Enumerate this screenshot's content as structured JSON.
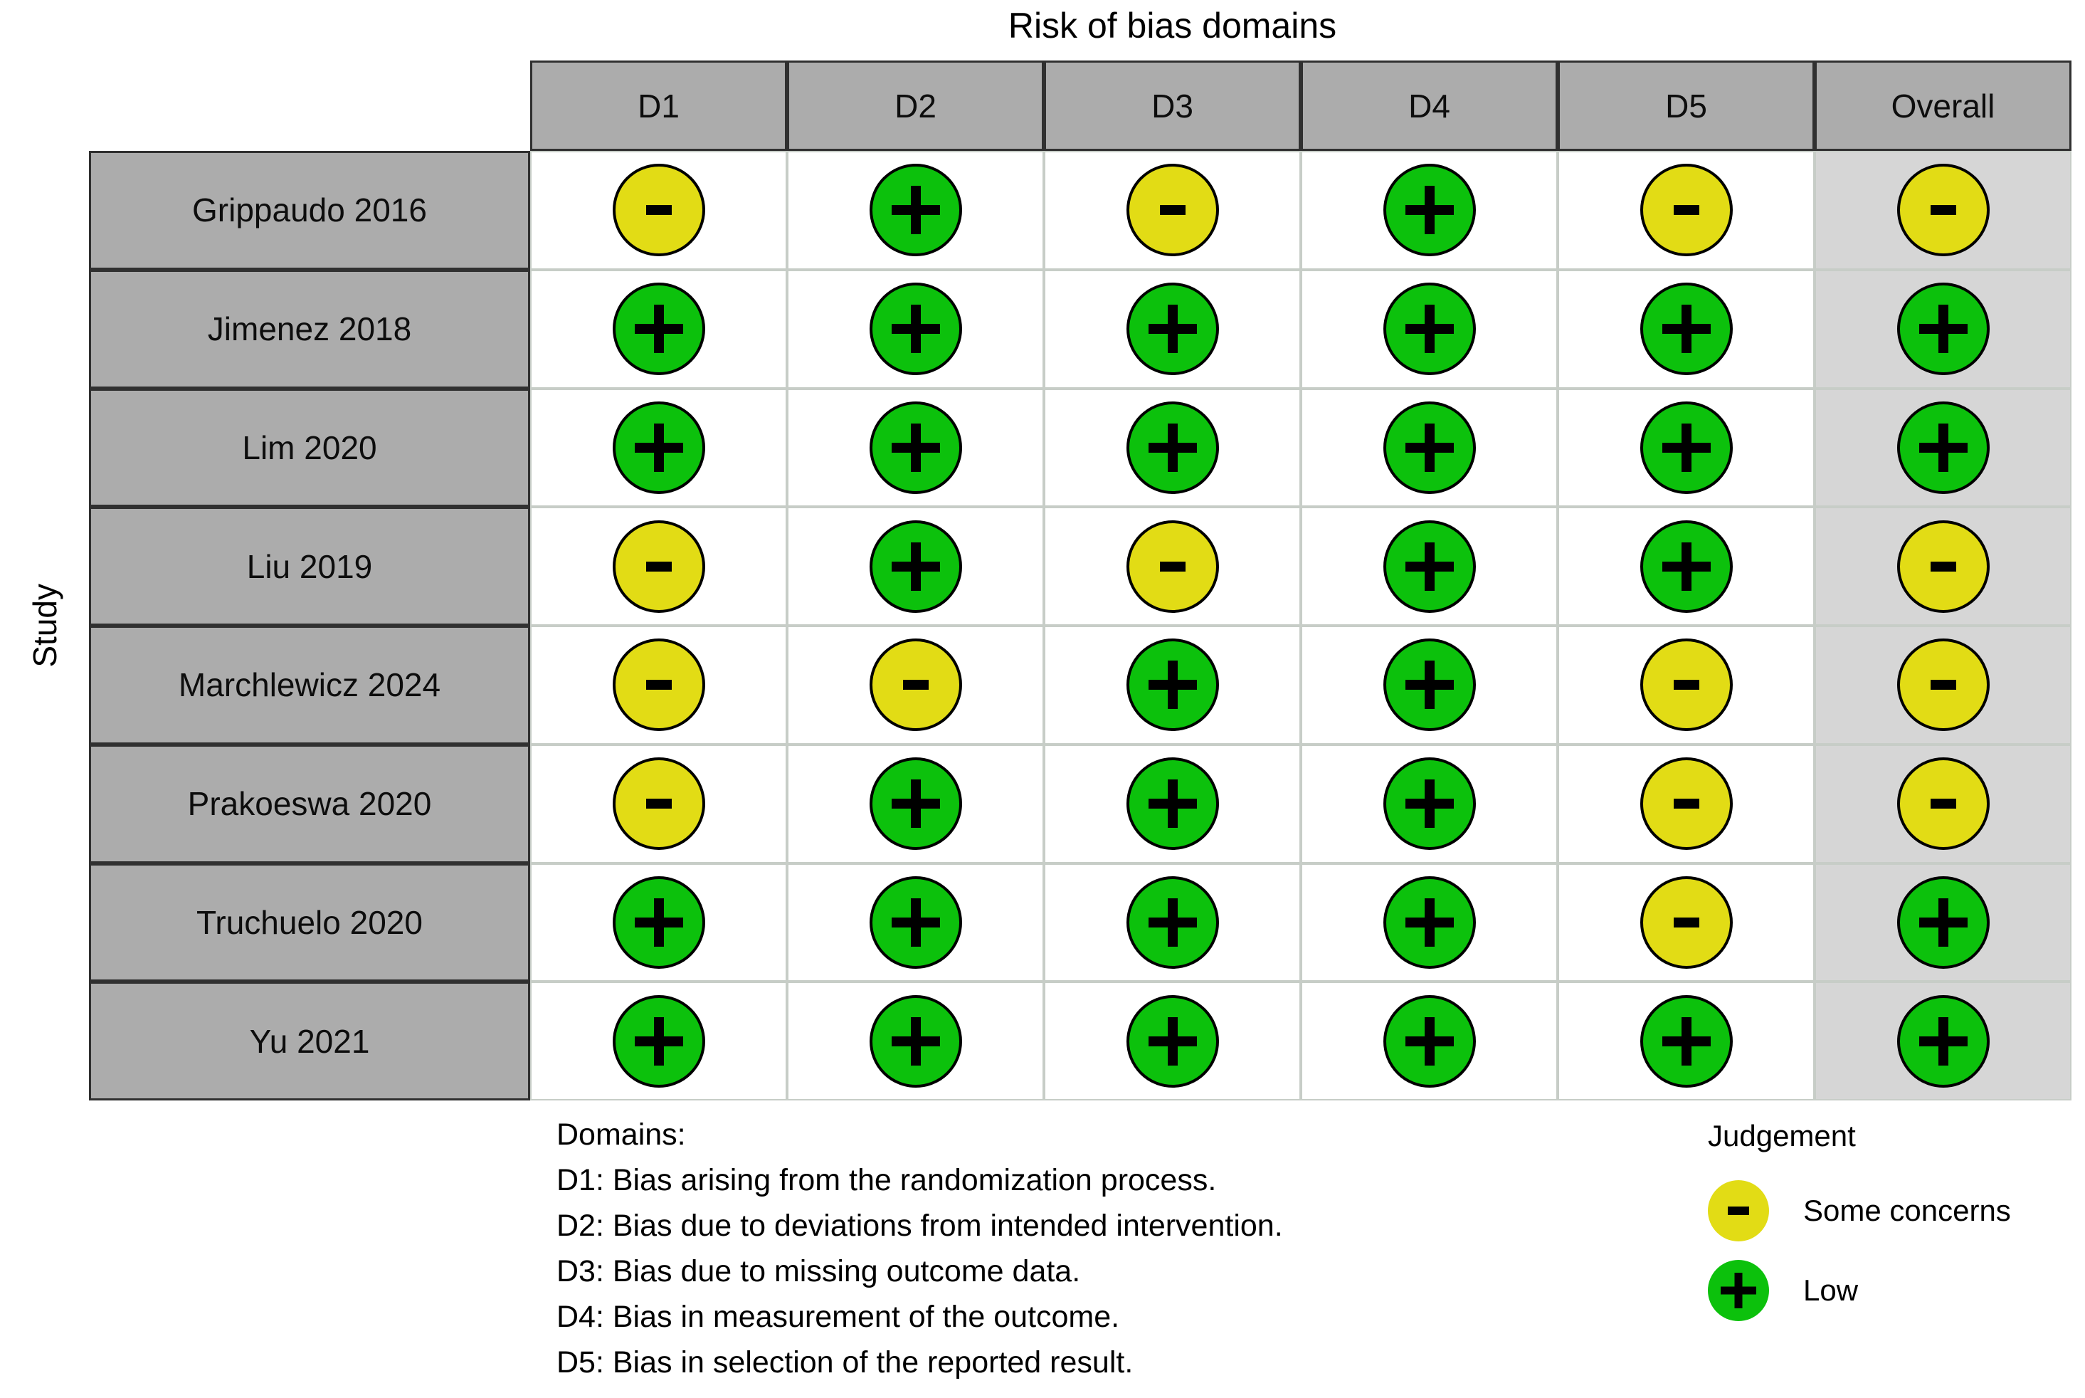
{
  "title": "Risk of bias domains",
  "axis_label": "Study",
  "columns": [
    "D1",
    "D2",
    "D3",
    "D4",
    "D5",
    "Overall"
  ],
  "rows": [
    {
      "study": "Grippaudo 2016",
      "judgements": [
        "some_concerns",
        "low",
        "some_concerns",
        "low",
        "some_concerns",
        "some_concerns"
      ]
    },
    {
      "study": "Jimenez 2018",
      "judgements": [
        "low",
        "low",
        "low",
        "low",
        "low",
        "low"
      ]
    },
    {
      "study": "Lim 2020",
      "judgements": [
        "low",
        "low",
        "low",
        "low",
        "low",
        "low"
      ]
    },
    {
      "study": "Liu 2019",
      "judgements": [
        "some_concerns",
        "low",
        "some_concerns",
        "low",
        "low",
        "some_concerns"
      ]
    },
    {
      "study": "Marchlewicz 2024",
      "judgements": [
        "some_concerns",
        "some_concerns",
        "low",
        "low",
        "some_concerns",
        "some_concerns"
      ]
    },
    {
      "study": "Prakoeswa 2020",
      "judgements": [
        "some_concerns",
        "low",
        "low",
        "low",
        "some_concerns",
        "some_concerns"
      ]
    },
    {
      "study": "Truchuelo 2020",
      "judgements": [
        "low",
        "low",
        "low",
        "low",
        "some_concerns",
        "low"
      ]
    },
    {
      "study": "Yu 2021",
      "judgements": [
        "low",
        "low",
        "low",
        "low",
        "low",
        "low"
      ]
    }
  ],
  "judgement_symbols": {
    "low": "+",
    "some_concerns": "-"
  },
  "colors": {
    "low": "#0CC10C",
    "some_concerns": "#E2DC15",
    "header_bg": "#ACACAC",
    "overall_column_bg": "#D6D6D6",
    "grid_line": "#C7CDC7",
    "dark_border": "#303030"
  },
  "footer": {
    "domains_heading": "Domains:",
    "domains": [
      "D1: Bias arising from the randomization process.",
      "D2: Bias due to deviations from intended intervention.",
      "D3: Bias due to missing outcome data.",
      "D4: Bias in measurement of the outcome.",
      "D5: Bias in selection of the reported result."
    ],
    "legend_heading": "Judgement",
    "legend": [
      {
        "key": "some_concerns",
        "symbol": "-",
        "label": "Some concerns"
      },
      {
        "key": "low",
        "symbol": "+",
        "label": "Low"
      }
    ]
  },
  "chart_data": {
    "type": "table",
    "title": "Risk of bias domains",
    "row_axis_label": "Study",
    "columns": [
      "D1",
      "D2",
      "D3",
      "D4",
      "D5",
      "Overall"
    ],
    "rows": [
      "Grippaudo 2016",
      "Jimenez 2018",
      "Lim 2020",
      "Liu 2019",
      "Marchlewicz 2024",
      "Prakoeswa 2020",
      "Truchuelo 2020",
      "Yu 2021"
    ],
    "values": [
      [
        "Some concerns",
        "Low",
        "Some concerns",
        "Low",
        "Some concerns",
        "Some concerns"
      ],
      [
        "Low",
        "Low",
        "Low",
        "Low",
        "Low",
        "Low"
      ],
      [
        "Low",
        "Low",
        "Low",
        "Low",
        "Low",
        "Low"
      ],
      [
        "Some concerns",
        "Low",
        "Some concerns",
        "Low",
        "Low",
        "Some concerns"
      ],
      [
        "Some concerns",
        "Some concerns",
        "Low",
        "Low",
        "Some concerns",
        "Some concerns"
      ],
      [
        "Some concerns",
        "Low",
        "Low",
        "Low",
        "Some concerns",
        "Some concerns"
      ],
      [
        "Low",
        "Low",
        "Low",
        "Low",
        "Some concerns",
        "Low"
      ],
      [
        "Low",
        "Low",
        "Low",
        "Low",
        "Low",
        "Low"
      ]
    ],
    "legend_entries": [
      {
        "label": "Some concerns",
        "symbol": "-",
        "color": "#E2DC15"
      },
      {
        "label": "Low",
        "symbol": "+",
        "color": "#0CC10C"
      }
    ],
    "legend_position": "bottom-right",
    "grid": true
  }
}
